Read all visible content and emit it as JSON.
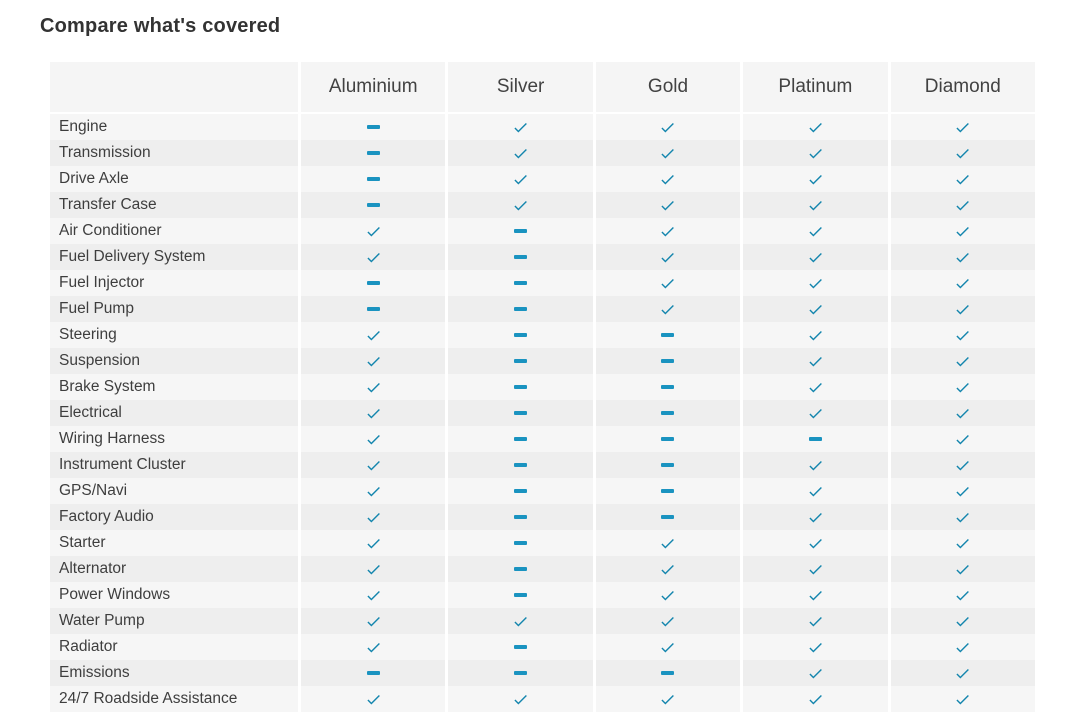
{
  "title": "Compare what's covered",
  "colors": {
    "accent_check": "#1385ad",
    "accent_dash": "#1a93c0",
    "header_bg": "#f5f5f5",
    "row_light": "#f6f6f6",
    "row_dark": "#eeeeee",
    "title_text": "#333333",
    "header_text": "#424242",
    "label_text": "#3e3e3e"
  },
  "icons": {
    "check": "check-icon",
    "dash": "dash-icon"
  },
  "table": {
    "columns": [
      "Aluminium",
      "Silver",
      "Gold",
      "Platinum",
      "Diamond"
    ],
    "rows": [
      {
        "label": "Engine",
        "values": [
          "dash",
          "check",
          "check",
          "check",
          "check"
        ]
      },
      {
        "label": "Transmission",
        "values": [
          "dash",
          "check",
          "check",
          "check",
          "check"
        ]
      },
      {
        "label": "Drive Axle",
        "values": [
          "dash",
          "check",
          "check",
          "check",
          "check"
        ]
      },
      {
        "label": "Transfer Case",
        "values": [
          "dash",
          "check",
          "check",
          "check",
          "check"
        ]
      },
      {
        "label": "Air Conditioner",
        "values": [
          "check",
          "dash",
          "check",
          "check",
          "check"
        ]
      },
      {
        "label": "Fuel Delivery System",
        "values": [
          "check",
          "dash",
          "check",
          "check",
          "check"
        ]
      },
      {
        "label": "Fuel Injector",
        "values": [
          "dash",
          "dash",
          "check",
          "check",
          "check"
        ]
      },
      {
        "label": "Fuel Pump",
        "values": [
          "dash",
          "dash",
          "check",
          "check",
          "check"
        ]
      },
      {
        "label": "Steering",
        "values": [
          "check",
          "dash",
          "dash",
          "check",
          "check"
        ]
      },
      {
        "label": "Suspension",
        "values": [
          "check",
          "dash",
          "dash",
          "check",
          "check"
        ]
      },
      {
        "label": "Brake System",
        "values": [
          "check",
          "dash",
          "dash",
          "check",
          "check"
        ]
      },
      {
        "label": "Electrical",
        "values": [
          "check",
          "dash",
          "dash",
          "check",
          "check"
        ]
      },
      {
        "label": "Wiring Harness",
        "values": [
          "check",
          "dash",
          "dash",
          "dash",
          "check"
        ]
      },
      {
        "label": "Instrument Cluster",
        "values": [
          "check",
          "dash",
          "dash",
          "check",
          "check"
        ]
      },
      {
        "label": "GPS/Navi",
        "values": [
          "check",
          "dash",
          "dash",
          "check",
          "check"
        ]
      },
      {
        "label": "Factory Audio",
        "values": [
          "check",
          "dash",
          "dash",
          "check",
          "check"
        ]
      },
      {
        "label": "Starter",
        "values": [
          "check",
          "dash",
          "check",
          "check",
          "check"
        ]
      },
      {
        "label": "Alternator",
        "values": [
          "check",
          "dash",
          "check",
          "check",
          "check"
        ]
      },
      {
        "label": "Power Windows",
        "values": [
          "check",
          "dash",
          "check",
          "check",
          "check"
        ]
      },
      {
        "label": "Water Pump",
        "values": [
          "check",
          "check",
          "check",
          "check",
          "check"
        ]
      },
      {
        "label": "Radiator",
        "values": [
          "check",
          "dash",
          "check",
          "check",
          "check"
        ]
      },
      {
        "label": "Emissions",
        "values": [
          "dash",
          "dash",
          "dash",
          "check",
          "check"
        ]
      },
      {
        "label": "24/7 Roadside Assistance",
        "values": [
          "check",
          "check",
          "check",
          "check",
          "check"
        ]
      }
    ]
  }
}
